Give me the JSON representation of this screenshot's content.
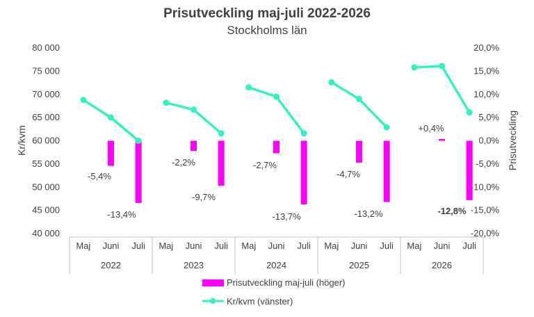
{
  "chart_data": {
    "type": "bar+line",
    "title": "Prisutveckling maj-juli 2022-2026",
    "subtitle": "Stockholms län",
    "y_left": {
      "label": "Kr/kvm",
      "min": 40000,
      "max": 80000,
      "step": 5000,
      "ticks": [
        "40 000",
        "45 000",
        "50 000",
        "55 000",
        "60 000",
        "65 000",
        "70 000",
        "75 000",
        "80 000"
      ]
    },
    "y_right": {
      "label": "Prisutveckling",
      "min": -20,
      "max": 20,
      "step": 5,
      "ticks": [
        "-20,0%",
        "-15,0%",
        "-10,0%",
        "-5,0%",
        "0,0%",
        "5,0%",
        "10,0%",
        "15,0%",
        "20,0%"
      ]
    },
    "groups": [
      {
        "year": "2022",
        "months": [
          "Maj",
          "Juni",
          "Juli"
        ],
        "kr_kvm": [
          68800,
          65000,
          60000
        ],
        "bars": [
          null,
          -5.4,
          -13.4
        ],
        "bar_labels": [
          "",
          "-5,4%",
          "-13,4%"
        ]
      },
      {
        "year": "2023",
        "months": [
          "Maj",
          "Juni",
          "Juli"
        ],
        "kr_kvm": [
          68200,
          66700,
          61600
        ],
        "bars": [
          null,
          -2.2,
          -9.7
        ],
        "bar_labels": [
          "",
          "-2,2%",
          "-9,7%"
        ]
      },
      {
        "year": "2024",
        "months": [
          "Maj",
          "Juni",
          "Juli"
        ],
        "kr_kvm": [
          71500,
          69500,
          61600
        ],
        "bars": [
          null,
          -2.7,
          -13.7
        ],
        "bar_labels": [
          "",
          "-2,7%",
          "-13,7%"
        ]
      },
      {
        "year": "2025",
        "months": [
          "Maj",
          "Juni",
          "Juli"
        ],
        "kr_kvm": [
          72600,
          69000,
          62900
        ],
        "bars": [
          null,
          -4.7,
          -13.2
        ],
        "bar_labels": [
          "",
          "-4,7%",
          "-13,2%"
        ]
      },
      {
        "year": "2026",
        "months": [
          "Maj",
          "Juni",
          "Juli"
        ],
        "kr_kvm": [
          75800,
          76100,
          66100
        ],
        "bars": [
          null,
          0.4,
          -12.8
        ],
        "bar_labels": [
          "",
          "+0,4%",
          "-12,8%"
        ],
        "bold_label_index": 2
      }
    ],
    "series": [
      {
        "name": "Prisutveckling maj-juli (höger)",
        "color": "#FF00FF",
        "kind": "bar",
        "axis": "right"
      },
      {
        "name": "Kr/kvm (vänster)",
        "color": "#33F2C2",
        "kind": "line",
        "axis": "left"
      }
    ],
    "legend_position": "bottom",
    "grid": false
  }
}
